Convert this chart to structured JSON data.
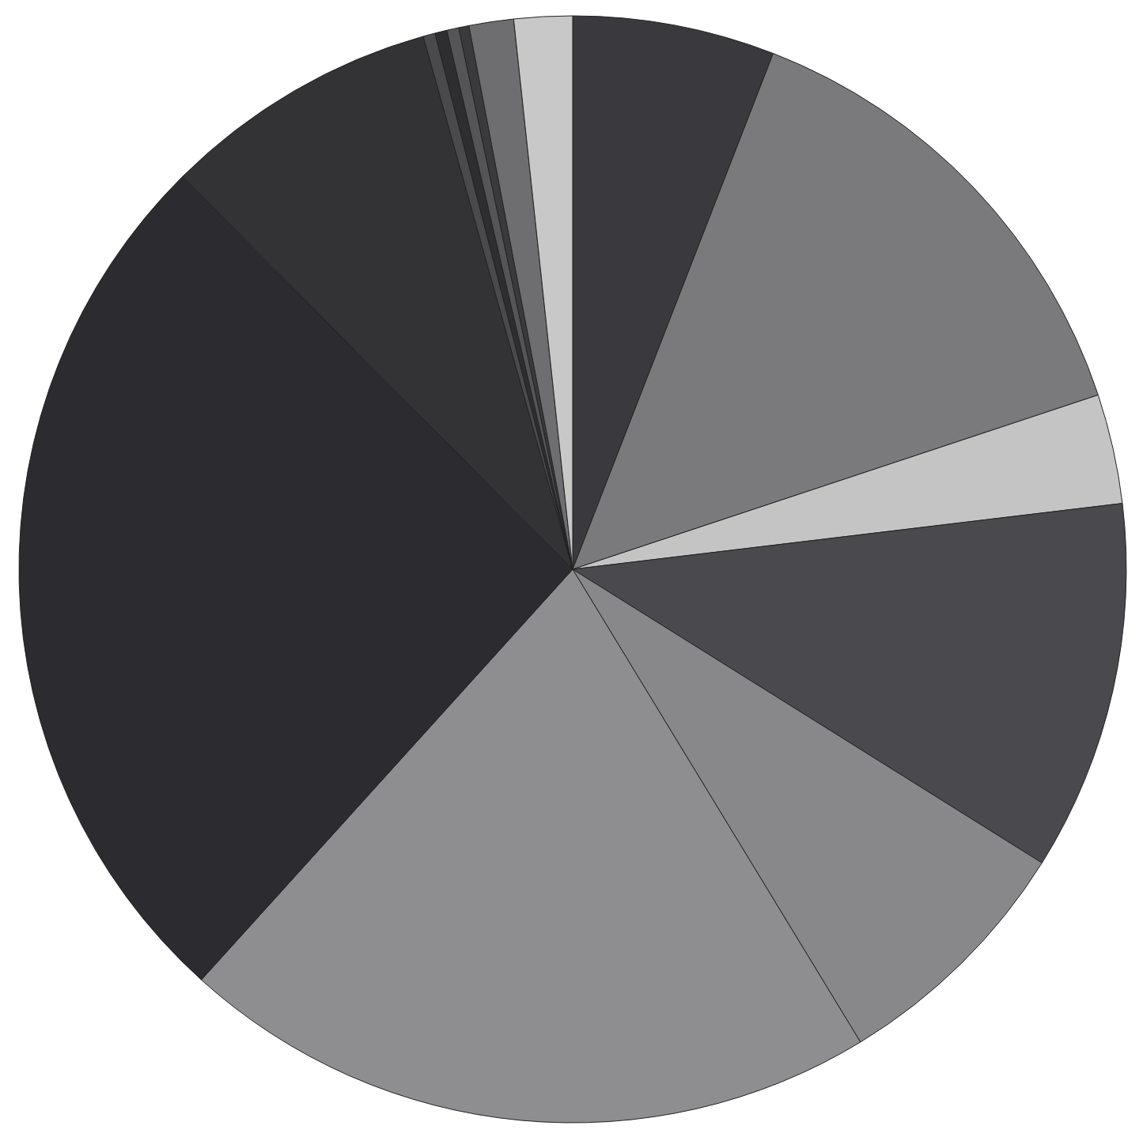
{
  "chart_data": {
    "type": "pie",
    "categories": [
      null,
      null,
      null,
      null,
      null,
      null,
      null,
      null,
      null,
      null,
      null,
      null,
      null,
      null
    ],
    "values": [
      5.9,
      14.0,
      3.2,
      10.8,
      7.4,
      20.4,
      25.85,
      8.1,
      0.35,
      0.35,
      0.35,
      0.3,
      1.3,
      1.7
    ],
    "colors": [
      "#3a3a3e",
      "#7a7a7c",
      "#c4c4c4",
      "#4a4a4e",
      "#88888a",
      "#8e8e90",
      "#2c2c30",
      "#333336",
      "#4a4a4c",
      "#2e2e30",
      "#555558",
      "#3a3a3c",
      "#6e6e70",
      "#c8c8c8"
    ]
  }
}
